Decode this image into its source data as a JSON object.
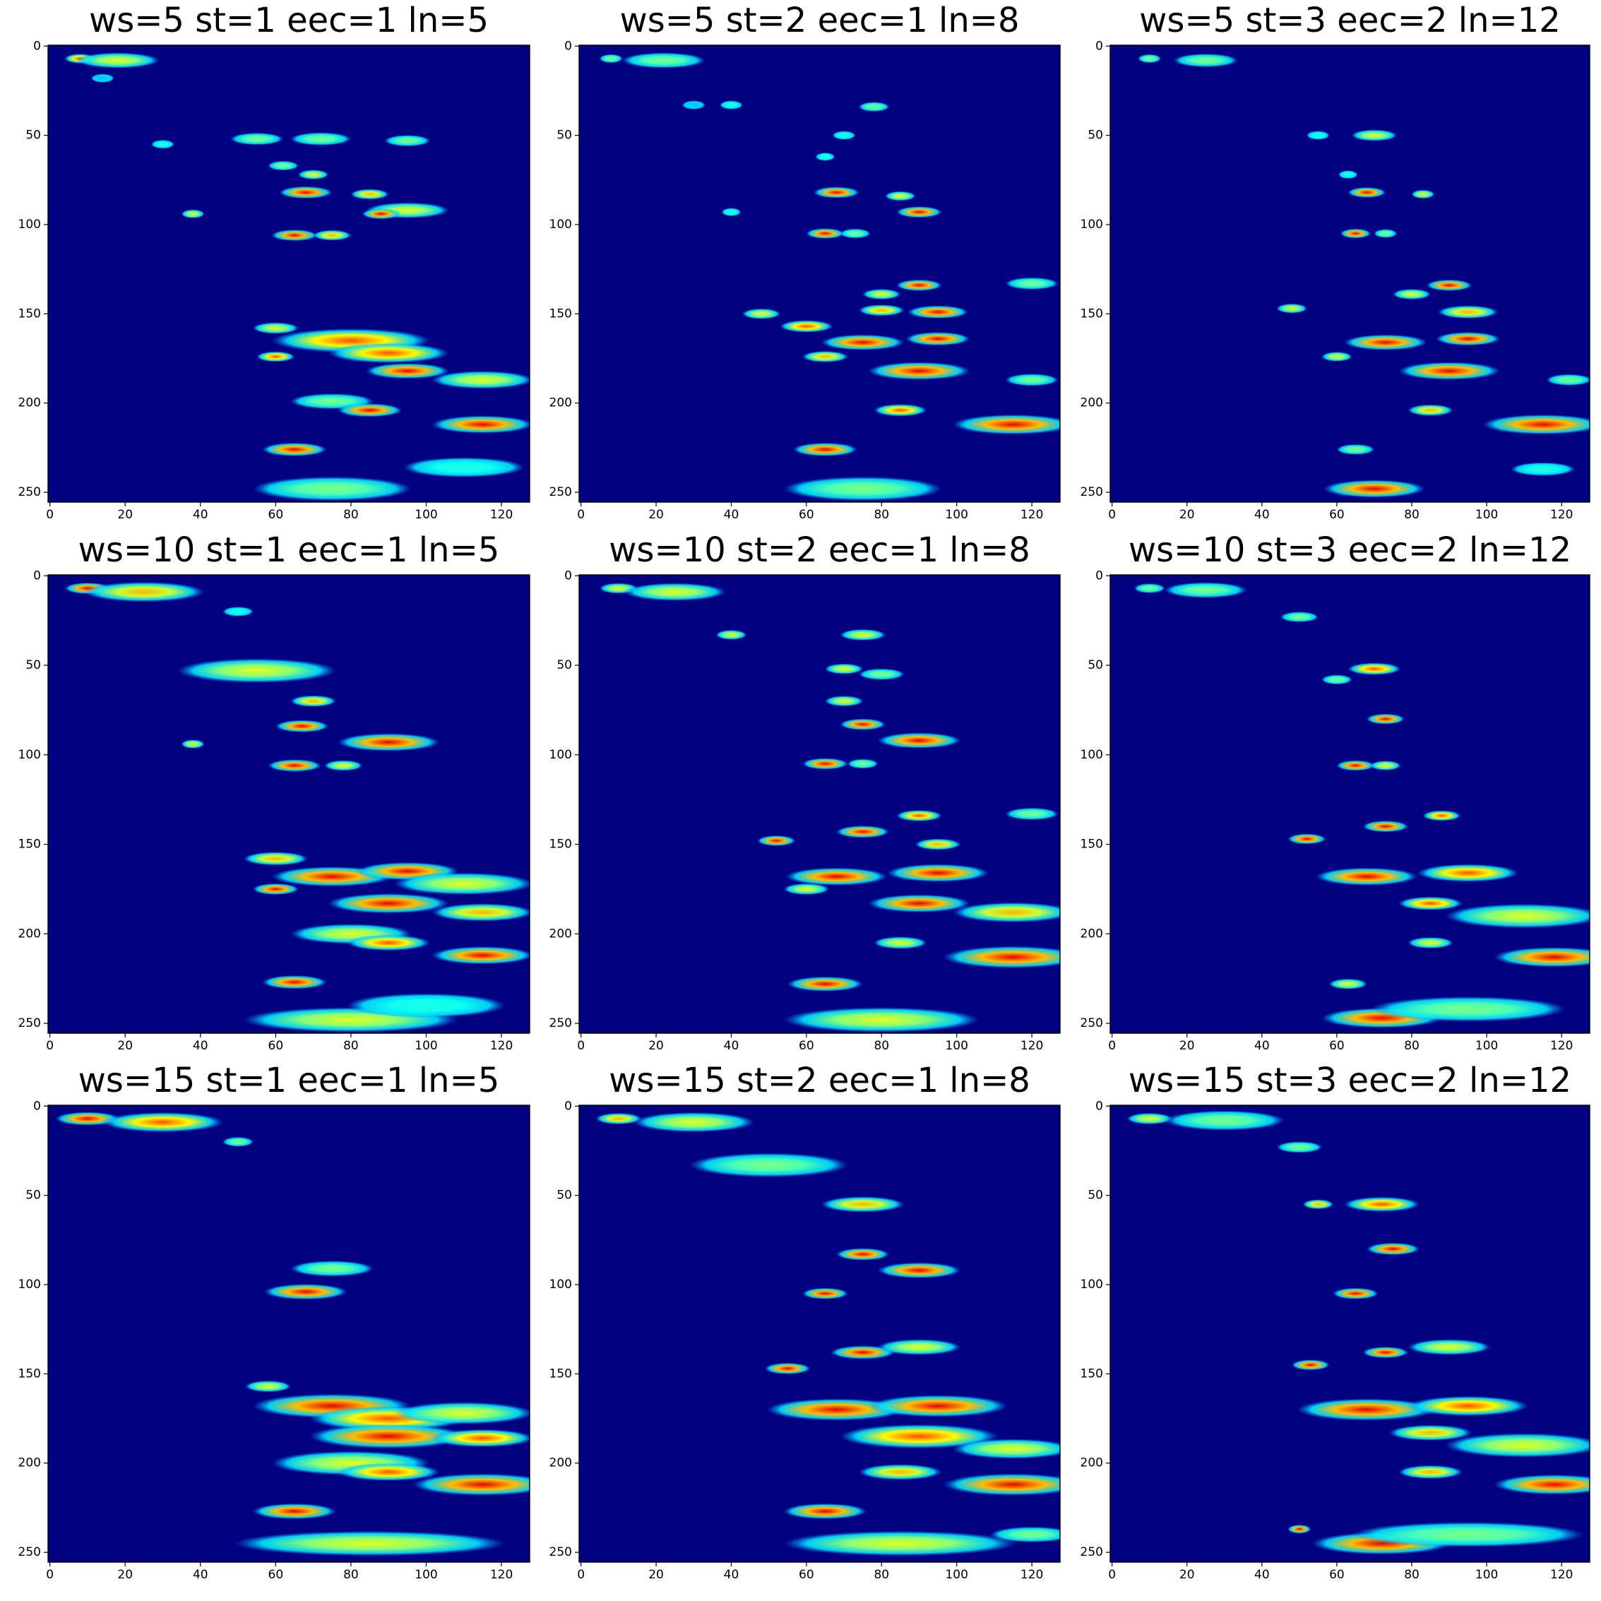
{
  "chart_data": [
    {
      "type": "heatmap",
      "title": "ws=5 st=1 eec=1 ln=5",
      "colormap": "jet",
      "xlim": [
        -0.5,
        127.5
      ],
      "ylim": [
        255.5,
        -0.5
      ],
      "xticks": [
        0,
        20,
        40,
        60,
        80,
        100,
        120
      ],
      "yticks": [
        0,
        50,
        100,
        150,
        200,
        250
      ],
      "points": [
        [
          8,
          7,
          0.8,
          6
        ],
        [
          18,
          8,
          0.6,
          20
        ],
        [
          14,
          18,
          0.3,
          4
        ],
        [
          30,
          55,
          0.4,
          4
        ],
        [
          55,
          52,
          0.5,
          12
        ],
        [
          72,
          52,
          0.5,
          14
        ],
        [
          95,
          53,
          0.5,
          10
        ],
        [
          62,
          67,
          0.5,
          6
        ],
        [
          70,
          72,
          0.6,
          6
        ],
        [
          68,
          82,
          0.9,
          12
        ],
        [
          85,
          83,
          0.7,
          8
        ],
        [
          95,
          92,
          0.6,
          20
        ],
        [
          88,
          94,
          0.9,
          8
        ],
        [
          38,
          94,
          0.6,
          4
        ],
        [
          65,
          106,
          0.9,
          10
        ],
        [
          75,
          106,
          0.7,
          8
        ],
        [
          60,
          158,
          0.6,
          10
        ],
        [
          80,
          165,
          0.8,
          40
        ],
        [
          90,
          172,
          0.8,
          30
        ],
        [
          60,
          174,
          0.8,
          8
        ],
        [
          95,
          182,
          0.9,
          20
        ],
        [
          115,
          187,
          0.6,
          25
        ],
        [
          75,
          199,
          0.5,
          20
        ],
        [
          85,
          204,
          0.9,
          15
        ],
        [
          115,
          212,
          0.9,
          25
        ],
        [
          65,
          226,
          0.9,
          15
        ],
        [
          75,
          248,
          0.5,
          40
        ],
        [
          110,
          236,
          0.4,
          30
        ]
      ]
    },
    {
      "type": "heatmap",
      "title": "ws=5 st=2 eec=1 ln=8",
      "colormap": "jet",
      "xlim": [
        -0.5,
        127.5
      ],
      "ylim": [
        255.5,
        -0.5
      ],
      "xticks": [
        0,
        20,
        40,
        60,
        80,
        100,
        120
      ],
      "yticks": [
        0,
        50,
        100,
        150,
        200,
        250
      ],
      "points": [
        [
          8,
          7,
          0.5,
          4
        ],
        [
          22,
          8,
          0.5,
          20
        ],
        [
          30,
          33,
          0.3,
          4
        ],
        [
          40,
          33,
          0.4,
          4
        ],
        [
          78,
          34,
          0.5,
          6
        ],
        [
          70,
          50,
          0.4,
          4
        ],
        [
          65,
          62,
          0.4,
          3
        ],
        [
          68,
          82,
          0.9,
          10
        ],
        [
          85,
          84,
          0.6,
          6
        ],
        [
          90,
          93,
          0.9,
          10
        ],
        [
          40,
          93,
          0.4,
          3
        ],
        [
          65,
          105,
          0.9,
          8
        ],
        [
          73,
          105,
          0.5,
          6
        ],
        [
          90,
          134,
          0.9,
          10
        ],
        [
          80,
          139,
          0.6,
          8
        ],
        [
          80,
          148,
          0.7,
          10
        ],
        [
          95,
          149,
          0.9,
          14
        ],
        [
          120,
          133,
          0.5,
          12
        ],
        [
          48,
          150,
          0.6,
          8
        ],
        [
          60,
          157,
          0.8,
          12
        ],
        [
          75,
          166,
          0.9,
          20
        ],
        [
          95,
          164,
          0.9,
          15
        ],
        [
          65,
          174,
          0.7,
          10
        ],
        [
          90,
          182,
          0.9,
          25
        ],
        [
          120,
          187,
          0.5,
          12
        ],
        [
          85,
          204,
          0.8,
          12
        ],
        [
          115,
          212,
          0.9,
          30
        ],
        [
          65,
          226,
          0.9,
          15
        ],
        [
          75,
          248,
          0.5,
          40
        ]
      ]
    },
    {
      "type": "heatmap",
      "title": "ws=5 st=3 eec=2 ln=12",
      "colormap": "jet",
      "xlim": [
        -0.5,
        127.5
      ],
      "ylim": [
        255.5,
        -0.5
      ],
      "xticks": [
        0,
        20,
        40,
        60,
        80,
        100,
        120
      ],
      "yticks": [
        0,
        50,
        100,
        150,
        200,
        250
      ],
      "points": [
        [
          10,
          7,
          0.5,
          4
        ],
        [
          25,
          8,
          0.5,
          15
        ],
        [
          70,
          50,
          0.6,
          10
        ],
        [
          55,
          50,
          0.4,
          4
        ],
        [
          63,
          72,
          0.4,
          3
        ],
        [
          68,
          82,
          0.9,
          8
        ],
        [
          83,
          83,
          0.6,
          4
        ],
        [
          65,
          105,
          0.9,
          6
        ],
        [
          73,
          105,
          0.5,
          4
        ],
        [
          90,
          134,
          0.9,
          10
        ],
        [
          80,
          139,
          0.6,
          8
        ],
        [
          95,
          149,
          0.7,
          14
        ],
        [
          48,
          147,
          0.6,
          6
        ],
        [
          73,
          166,
          0.9,
          20
        ],
        [
          95,
          164,
          0.9,
          15
        ],
        [
          60,
          174,
          0.6,
          6
        ],
        [
          90,
          182,
          0.9,
          25
        ],
        [
          122,
          187,
          0.5,
          10
        ],
        [
          85,
          204,
          0.7,
          10
        ],
        [
          115,
          212,
          0.9,
          30
        ],
        [
          65,
          226,
          0.5,
          8
        ],
        [
          70,
          248,
          0.9,
          25
        ],
        [
          115,
          237,
          0.4,
          15
        ]
      ]
    },
    {
      "type": "heatmap",
      "title": "ws=10 st=1 eec=1 ln=5",
      "colormap": "jet",
      "xlim": [
        -0.5,
        127.5
      ],
      "ylim": [
        255.5,
        -0.5
      ],
      "xticks": [
        0,
        20,
        40,
        60,
        80,
        100,
        120
      ],
      "yticks": [
        0,
        50,
        100,
        150,
        200,
        250
      ],
      "points": [
        [
          10,
          7,
          0.9,
          10
        ],
        [
          25,
          9,
          0.7,
          30
        ],
        [
          50,
          20,
          0.4,
          6
        ],
        [
          55,
          53,
          0.6,
          40
        ],
        [
          70,
          70,
          0.7,
          10
        ],
        [
          67,
          84,
          0.9,
          12
        ],
        [
          90,
          93,
          0.9,
          25
        ],
        [
          38,
          94,
          0.6,
          4
        ],
        [
          65,
          106,
          0.9,
          12
        ],
        [
          78,
          106,
          0.6,
          8
        ],
        [
          60,
          158,
          0.7,
          15
        ],
        [
          75,
          168,
          0.9,
          30
        ],
        [
          95,
          165,
          0.9,
          25
        ],
        [
          110,
          172,
          0.6,
          35
        ],
        [
          60,
          175,
          0.9,
          10
        ],
        [
          90,
          183,
          0.9,
          30
        ],
        [
          115,
          188,
          0.7,
          25
        ],
        [
          80,
          200,
          0.6,
          30
        ],
        [
          90,
          205,
          0.8,
          20
        ],
        [
          115,
          212,
          0.9,
          25
        ],
        [
          65,
          227,
          0.9,
          15
        ],
        [
          80,
          248,
          0.6,
          55
        ],
        [
          100,
          240,
          0.4,
          40
        ]
      ]
    },
    {
      "type": "heatmap",
      "title": "ws=10 st=2 eec=1 ln=8",
      "colormap": "jet",
      "xlim": [
        -0.5,
        127.5
      ],
      "ylim": [
        255.5,
        -0.5
      ],
      "xticks": [
        0,
        20,
        40,
        60,
        80,
        100,
        120
      ],
      "yticks": [
        0,
        50,
        100,
        150,
        200,
        250
      ],
      "points": [
        [
          10,
          7,
          0.6,
          8
        ],
        [
          25,
          9,
          0.6,
          25
        ],
        [
          40,
          33,
          0.6,
          6
        ],
        [
          75,
          33,
          0.6,
          10
        ],
        [
          70,
          52,
          0.6,
          8
        ],
        [
          80,
          55,
          0.5,
          10
        ],
        [
          70,
          70,
          0.6,
          8
        ],
        [
          75,
          83,
          0.9,
          10
        ],
        [
          90,
          92,
          0.9,
          20
        ],
        [
          65,
          105,
          0.9,
          10
        ],
        [
          75,
          105,
          0.5,
          6
        ],
        [
          75,
          143,
          0.9,
          12
        ],
        [
          90,
          134,
          0.8,
          10
        ],
        [
          95,
          150,
          0.7,
          10
        ],
        [
          120,
          133,
          0.5,
          12
        ],
        [
          52,
          148,
          0.9,
          8
        ],
        [
          68,
          168,
          0.9,
          25
        ],
        [
          95,
          166,
          0.9,
          25
        ],
        [
          60,
          175,
          0.6,
          10
        ],
        [
          90,
          183,
          0.9,
          25
        ],
        [
          115,
          188,
          0.7,
          30
        ],
        [
          85,
          205,
          0.6,
          12
        ],
        [
          115,
          213,
          0.9,
          35
        ],
        [
          65,
          228,
          0.9,
          18
        ],
        [
          80,
          248,
          0.6,
          50
        ]
      ]
    },
    {
      "type": "heatmap",
      "title": "ws=10 st=3 eec=2 ln=12",
      "colormap": "jet",
      "xlim": [
        -0.5,
        127.5
      ],
      "ylim": [
        255.5,
        -0.5
      ],
      "xticks": [
        0,
        20,
        40,
        60,
        80,
        100,
        120
      ],
      "yticks": [
        0,
        50,
        100,
        150,
        200,
        250
      ],
      "points": [
        [
          10,
          7,
          0.5,
          6
        ],
        [
          25,
          8,
          0.5,
          20
        ],
        [
          50,
          23,
          0.5,
          8
        ],
        [
          70,
          52,
          0.8,
          12
        ],
        [
          60,
          58,
          0.5,
          6
        ],
        [
          73,
          80,
          0.9,
          8
        ],
        [
          65,
          106,
          0.9,
          8
        ],
        [
          73,
          106,
          0.6,
          6
        ],
        [
          73,
          140,
          0.9,
          10
        ],
        [
          88,
          134,
          0.8,
          8
        ],
        [
          52,
          147,
          0.9,
          8
        ],
        [
          68,
          168,
          0.9,
          25
        ],
        [
          95,
          166,
          0.8,
          25
        ],
        [
          85,
          183,
          0.8,
          15
        ],
        [
          110,
          190,
          0.6,
          40
        ],
        [
          85,
          205,
          0.6,
          10
        ],
        [
          118,
          213,
          0.9,
          30
        ],
        [
          63,
          228,
          0.6,
          8
        ],
        [
          72,
          247,
          0.9,
          30
        ],
        [
          95,
          242,
          0.5,
          50
        ]
      ]
    },
    {
      "type": "heatmap",
      "title": "ws=15 st=1 eec=1 ln=5",
      "colormap": "jet",
      "xlim": [
        -0.5,
        127.5
      ],
      "ylim": [
        255.5,
        -0.5
      ],
      "xticks": [
        0,
        20,
        40,
        60,
        80,
        100,
        120
      ],
      "yticks": [
        0,
        50,
        100,
        150,
        200,
        250
      ],
      "points": [
        [
          10,
          7,
          0.9,
          15
        ],
        [
          30,
          9,
          0.8,
          30
        ],
        [
          50,
          20,
          0.5,
          6
        ],
        [
          75,
          91,
          0.5,
          20
        ],
        [
          68,
          104,
          0.9,
          20
        ],
        [
          58,
          157,
          0.6,
          10
        ],
        [
          75,
          168,
          0.9,
          40
        ],
        [
          90,
          175,
          0.8,
          40
        ],
        [
          110,
          172,
          0.6,
          35
        ],
        [
          90,
          185,
          0.9,
          40
        ],
        [
          115,
          186,
          0.8,
          25
        ],
        [
          80,
          200,
          0.6,
          40
        ],
        [
          90,
          205,
          0.8,
          25
        ],
        [
          115,
          212,
          0.9,
          35
        ],
        [
          65,
          227,
          0.9,
          20
        ],
        [
          85,
          245,
          0.6,
          70
        ]
      ]
    },
    {
      "type": "heatmap",
      "title": "ws=15 st=2 eec=1 ln=8",
      "colormap": "jet",
      "xlim": [
        -0.5,
        127.5
      ],
      "ylim": [
        255.5,
        -0.5
      ],
      "xticks": [
        0,
        20,
        40,
        60,
        80,
        100,
        120
      ],
      "yticks": [
        0,
        50,
        100,
        150,
        200,
        250
      ],
      "points": [
        [
          10,
          7,
          0.7,
          10
        ],
        [
          30,
          9,
          0.6,
          30
        ],
        [
          50,
          33,
          0.5,
          40
        ],
        [
          75,
          55,
          0.7,
          20
        ],
        [
          75,
          83,
          0.9,
          12
        ],
        [
          90,
          92,
          0.9,
          20
        ],
        [
          65,
          105,
          0.9,
          10
        ],
        [
          75,
          138,
          0.9,
          15
        ],
        [
          90,
          135,
          0.6,
          20
        ],
        [
          55,
          147,
          0.9,
          10
        ],
        [
          68,
          170,
          0.9,
          35
        ],
        [
          95,
          168,
          0.9,
          35
        ],
        [
          90,
          185,
          0.8,
          40
        ],
        [
          115,
          192,
          0.6,
          30
        ],
        [
          85,
          205,
          0.7,
          20
        ],
        [
          115,
          212,
          0.9,
          35
        ],
        [
          65,
          227,
          0.9,
          20
        ],
        [
          85,
          245,
          0.6,
          60
        ],
        [
          120,
          240,
          0.5,
          20
        ]
      ]
    },
    {
      "type": "heatmap",
      "title": "ws=15 st=3 eec=2 ln=12",
      "colormap": "jet",
      "xlim": [
        -0.5,
        127.5
      ],
      "ylim": [
        255.5,
        -0.5
      ],
      "xticks": [
        0,
        20,
        40,
        60,
        80,
        100,
        120
      ],
      "yticks": [
        0,
        50,
        100,
        150,
        200,
        250
      ],
      "points": [
        [
          10,
          7,
          0.6,
          10
        ],
        [
          30,
          8,
          0.5,
          30
        ],
        [
          50,
          23,
          0.5,
          10
        ],
        [
          72,
          55,
          0.8,
          18
        ],
        [
          55,
          55,
          0.7,
          6
        ],
        [
          75,
          80,
          0.9,
          12
        ],
        [
          65,
          105,
          0.9,
          10
        ],
        [
          73,
          138,
          0.9,
          10
        ],
        [
          90,
          135,
          0.6,
          20
        ],
        [
          53,
          145,
          0.9,
          8
        ],
        [
          68,
          170,
          0.9,
          35
        ],
        [
          95,
          168,
          0.8,
          30
        ],
        [
          85,
          183,
          0.7,
          20
        ],
        [
          110,
          190,
          0.6,
          40
        ],
        [
          85,
          205,
          0.7,
          15
        ],
        [
          118,
          212,
          0.9,
          30
        ],
        [
          72,
          245,
          0.9,
          35
        ],
        [
          95,
          240,
          0.5,
          60
        ],
        [
          50,
          237,
          0.9,
          4
        ]
      ]
    }
  ]
}
